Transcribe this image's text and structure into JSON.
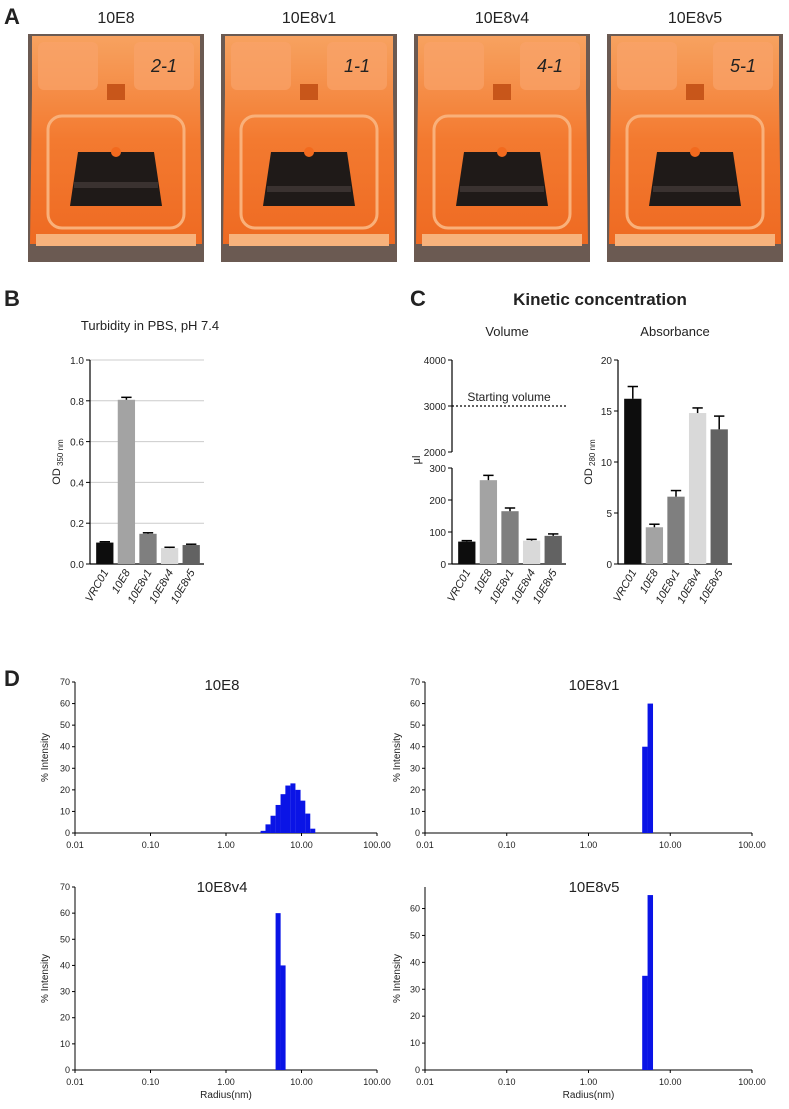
{
  "panel_letters": {
    "a": "A",
    "b": "B",
    "c": "C",
    "d": "D"
  },
  "panel_a": {
    "photos": [
      {
        "label": "10E8",
        "tube_mark": "2-1"
      },
      {
        "label": "10E8v1",
        "tube_mark": "1-1"
      },
      {
        "label": "10E8v4",
        "tube_mark": "4-1"
      },
      {
        "label": "10E8v5",
        "tube_mark": "5-1"
      }
    ],
    "colors": {
      "tube": "#f3772c",
      "tube_light": "#f9a36a",
      "window": "#1f1a18"
    }
  },
  "panel_c_title": "Kinetic concentration",
  "chart_data": [
    {
      "id": "turbidity",
      "type": "bar",
      "title": "Turbidity in PBS, pH 7.4",
      "ylabel_main": "OD",
      "ylabel_sub": "350 nm",
      "categories": [
        "VRC01",
        "10E8",
        "10E8v1",
        "10E8v4",
        "10E8v5"
      ],
      "values": [
        0.105,
        0.805,
        0.148,
        0.078,
        0.093
      ],
      "errors": [
        0.004,
        0.012,
        0.005,
        0.004,
        0.004
      ],
      "colors": [
        "#0d0d0d",
        "#a3a3a3",
        "#7f7f7f",
        "#d9d9d9",
        "#626262"
      ],
      "ylim": [
        0,
        1.0
      ],
      "yticks": [
        "0.0",
        "0.2",
        "0.4",
        "0.6",
        "0.8",
        "1.0"
      ],
      "grid": true
    },
    {
      "id": "volume",
      "type": "bar",
      "title": "Volume",
      "ylabel": "μl",
      "categories": [
        "VRC01",
        "10E8",
        "10E8v1",
        "10E8v4",
        "10E8v5"
      ],
      "values": [
        70,
        262,
        165,
        73,
        88
      ],
      "errors": [
        3,
        15,
        10,
        4,
        6
      ],
      "colors": [
        "#0d0d0d",
        "#a3a3a3",
        "#7f7f7f",
        "#d9d9d9",
        "#626262"
      ],
      "axis_break": {
        "lower": [
          0,
          300
        ],
        "upper": [
          2000,
          4000
        ]
      },
      "yticks_lower": [
        "0",
        "100",
        "200",
        "300"
      ],
      "yticks_upper": [
        "2000",
        "3000",
        "4000"
      ],
      "reference_line": {
        "value": 3000,
        "label": "Starting volume"
      }
    },
    {
      "id": "absorbance",
      "type": "bar",
      "title": "Absorbance",
      "ylabel_main": "OD",
      "ylabel_sub": "280 nm",
      "categories": [
        "VRC01",
        "10E8",
        "10E8v1",
        "10E8v4",
        "10E8v5"
      ],
      "values": [
        16.2,
        3.6,
        6.6,
        14.8,
        13.2
      ],
      "errors": [
        1.2,
        0.3,
        0.6,
        0.5,
        1.3
      ],
      "colors": [
        "#0d0d0d",
        "#a3a3a3",
        "#7f7f7f",
        "#d9d9d9",
        "#626262"
      ],
      "ylim": [
        0,
        20
      ],
      "yticks": [
        "0",
        "5",
        "10",
        "15",
        "20"
      ]
    },
    {
      "id": "dls-10E8",
      "type": "bar",
      "title": "10E8",
      "ylabel": "% Intensity",
      "xlabel": "",
      "xscale": "log",
      "xlim": [
        0.01,
        100
      ],
      "xticks": [
        "0.01",
        "0.10",
        "1.00",
        "10.00",
        "100.00"
      ],
      "ylim": [
        0,
        70
      ],
      "yticks": [
        "0",
        "10",
        "20",
        "30",
        "40",
        "50",
        "60",
        "70"
      ],
      "bin_width_log10": 0.0667,
      "bar_color": "#0a14e6",
      "x": [
        3.1,
        3.6,
        4.2,
        4.9,
        5.7,
        6.6,
        7.7,
        9.0,
        10.4,
        12.1,
        14.1
      ],
      "values": [
        1,
        4,
        8,
        13,
        18,
        22,
        23,
        20,
        15,
        9,
        2
      ]
    },
    {
      "id": "dls-10E8v1",
      "type": "bar",
      "title": "10E8v1",
      "ylabel": "% Intensity",
      "xlabel": "",
      "xscale": "log",
      "xlim": [
        0.01,
        100
      ],
      "xticks": [
        "0.01",
        "0.10",
        "1.00",
        "10.00",
        "100.00"
      ],
      "ylim": [
        0,
        70
      ],
      "yticks": [
        "0",
        "10",
        "20",
        "30",
        "40",
        "50",
        "60",
        "70"
      ],
      "bin_width_log10": 0.0667,
      "bar_color": "#0a14e6",
      "x": [
        4.9,
        5.7
      ],
      "values": [
        40,
        60
      ]
    },
    {
      "id": "dls-10E8v4",
      "type": "bar",
      "title": "10E8v4",
      "ylabel": "% Intensity",
      "xlabel": "Radius(nm)",
      "xscale": "log",
      "xlim": [
        0.01,
        100
      ],
      "xticks": [
        "0.01",
        "0.10",
        "1.00",
        "10.00",
        "100.00"
      ],
      "ylim": [
        0,
        70
      ],
      "yticks": [
        "0",
        "10",
        "20",
        "30",
        "40",
        "50",
        "60",
        "70"
      ],
      "bin_width_log10": 0.0667,
      "bar_color": "#0a14e6",
      "x": [
        4.9,
        5.7
      ],
      "values": [
        60,
        40
      ]
    },
    {
      "id": "dls-10E8v5",
      "type": "bar",
      "title": "10E8v5",
      "ylabel": "% Intensity",
      "xlabel": "Radius(nm)",
      "xscale": "log",
      "xlim": [
        0.01,
        100
      ],
      "xticks": [
        "0.01",
        "0.10",
        "1.00",
        "10.00",
        "100.00"
      ],
      "ylim": [
        0,
        68
      ],
      "yticks": [
        "0",
        "10",
        "20",
        "30",
        "40",
        "50",
        "60"
      ],
      "bin_width_log10": 0.0667,
      "bar_color": "#0a14e6",
      "x": [
        4.9,
        5.7
      ],
      "values": [
        35,
        65
      ]
    }
  ]
}
